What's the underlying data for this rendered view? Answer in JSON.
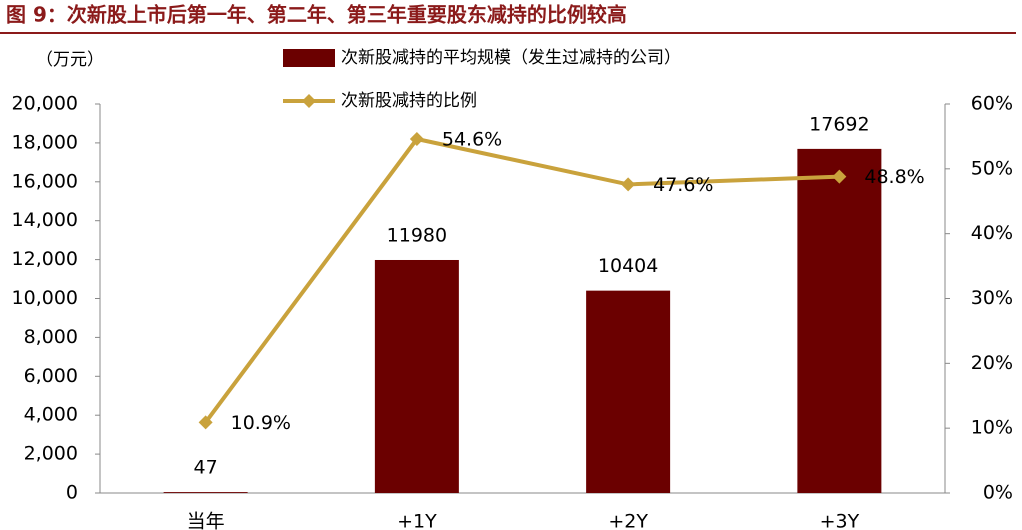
{
  "chart_data": {
    "type": "bar",
    "title": "图 9：次新股上市后第一年、第二年、第三年重要股东减持的比例较高",
    "y_label": "（万元）",
    "categories": [
      "当年",
      "+1Y",
      "+2Y",
      "+3Y"
    ],
    "series": [
      {
        "name": "次新股减持的平均规模（发生过减持的公司）",
        "type": "bar",
        "color": "#6b0000",
        "values": [
          47,
          11980,
          10404,
          17692
        ]
      },
      {
        "name": "次新股减持的比例",
        "type": "line",
        "axis": "y2",
        "color": "#c9a23c",
        "values": [
          10.9,
          54.6,
          47.6,
          48.8
        ],
        "value_labels": [
          "10.9%",
          "54.6%",
          "47.6%",
          "48.8%"
        ]
      }
    ],
    "ylim": [
      0,
      20000
    ],
    "yticks": [
      0,
      {
        "value": 2000,
        "label": "2,000"
      },
      {
        "value": 4000,
        "label": "4,000"
      },
      {
        "value": 6000,
        "label": "6,000"
      },
      {
        "value": 8000,
        "label": "8,000"
      },
      {
        "value": 10000,
        "label": "10,000"
      },
      {
        "value": 12000,
        "label": "12,000"
      },
      {
        "value": 14000,
        "label": "14,000"
      },
      {
        "value": 16000,
        "label": "16,000"
      },
      {
        "value": 18000,
        "label": "18,000"
      },
      {
        "value": 20000,
        "label": "20,000"
      }
    ],
    "y2lim": [
      0,
      60
    ],
    "y2ticks": [
      {
        "value": 0,
        "label": "0%"
      },
      {
        "value": 10,
        "label": "10%"
      },
      {
        "value": 20,
        "label": "20%"
      },
      {
        "value": 30,
        "label": "30%"
      },
      {
        "value": 40,
        "label": "40%"
      },
      {
        "value": 50,
        "label": "50%"
      },
      {
        "value": 60,
        "label": "60%"
      }
    ],
    "grid": false
  }
}
